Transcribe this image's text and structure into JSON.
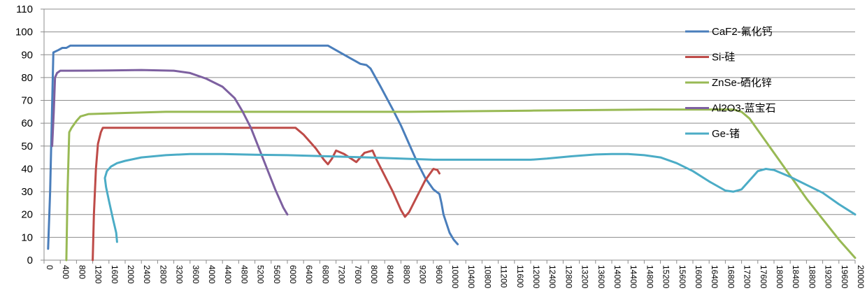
{
  "chart_data": {
    "type": "line",
    "title": "",
    "xlabel": "",
    "ylabel": "",
    "xlim": [
      0,
      20000
    ],
    "ylim": [
      0,
      110
    ],
    "y_ticks": [
      0,
      10,
      20,
      30,
      40,
      50,
      60,
      70,
      80,
      90,
      100,
      110
    ],
    "x_ticks": [
      0,
      400,
      800,
      1200,
      1600,
      2000,
      2400,
      2800,
      3200,
      3600,
      4000,
      4400,
      4800,
      5200,
      5600,
      6000,
      6400,
      6800,
      7200,
      7600,
      8000,
      8400,
      8800,
      9200,
      9600,
      10000,
      10400,
      10800,
      11200,
      11600,
      12000,
      12400,
      12800,
      13200,
      13600,
      14000,
      14400,
      14800,
      15200,
      15600,
      16000,
      16400,
      16800,
      17200,
      17600,
      18000,
      18400,
      18800,
      19200,
      19600,
      20000
    ],
    "grid": "horizontal",
    "legend_position": "right",
    "series": [
      {
        "name": "CaF2-氟化钙",
        "color": "#4a7ebb",
        "points": [
          [
            100,
            5
          ],
          [
            150,
            30
          ],
          [
            230,
            91
          ],
          [
            350,
            92
          ],
          [
            450,
            93
          ],
          [
            550,
            93
          ],
          [
            650,
            94
          ],
          [
            2000,
            94
          ],
          [
            4000,
            94
          ],
          [
            6000,
            94
          ],
          [
            7000,
            94
          ],
          [
            7400,
            90
          ],
          [
            7600,
            88
          ],
          [
            7800,
            86
          ],
          [
            7950,
            85.5
          ],
          [
            8050,
            84
          ],
          [
            8300,
            76
          ],
          [
            8600,
            66
          ],
          [
            8800,
            59
          ],
          [
            9000,
            51
          ],
          [
            9200,
            43
          ],
          [
            9400,
            36
          ],
          [
            9600,
            31
          ],
          [
            9750,
            29
          ],
          [
            9800,
            25
          ],
          [
            9850,
            20
          ],
          [
            10000,
            12
          ],
          [
            10100,
            9
          ],
          [
            10200,
            7
          ]
        ]
      },
      {
        "name": "Si-硅",
        "color": "#be4b48",
        "points": [
          [
            1200,
            0
          ],
          [
            1230,
            20
          ],
          [
            1280,
            40
          ],
          [
            1330,
            51
          ],
          [
            1400,
            56
          ],
          [
            1450,
            58
          ],
          [
            1600,
            58
          ],
          [
            3000,
            58
          ],
          [
            5000,
            58
          ],
          [
            6000,
            58
          ],
          [
            6100,
            58
          ],
          [
            6200,
            58
          ],
          [
            6400,
            55
          ],
          [
            6700,
            49
          ],
          [
            6900,
            44
          ],
          [
            7000,
            42
          ],
          [
            7100,
            44.5
          ],
          [
            7200,
            48
          ],
          [
            7400,
            46.5
          ],
          [
            7700,
            43
          ],
          [
            7900,
            47
          ],
          [
            8100,
            48
          ],
          [
            8200,
            44
          ],
          [
            8400,
            37
          ],
          [
            8600,
            30
          ],
          [
            8800,
            22
          ],
          [
            8900,
            19
          ],
          [
            9000,
            21
          ],
          [
            9200,
            28
          ],
          [
            9400,
            35
          ],
          [
            9600,
            40
          ],
          [
            9700,
            39.5
          ],
          [
            9750,
            38
          ]
        ]
      },
      {
        "name": "ZnSe-硒化锌",
        "color": "#98b954",
        "points": [
          [
            550,
            0
          ],
          [
            580,
            30
          ],
          [
            620,
            56
          ],
          [
            680,
            58
          ],
          [
            800,
            61
          ],
          [
            900,
            63
          ],
          [
            1100,
            64
          ],
          [
            2000,
            64.5
          ],
          [
            3000,
            65
          ],
          [
            6000,
            65
          ],
          [
            9000,
            65
          ],
          [
            12000,
            65.5
          ],
          [
            15000,
            66
          ],
          [
            16800,
            66
          ],
          [
            17000,
            66
          ],
          [
            17200,
            65
          ],
          [
            17400,
            62
          ],
          [
            17600,
            57
          ],
          [
            18000,
            47
          ],
          [
            18400,
            37
          ],
          [
            18800,
            27
          ],
          [
            19200,
            18
          ],
          [
            19600,
            9
          ],
          [
            20000,
            1
          ]
        ]
      },
      {
        "name": "Al2O3-蓝宝石",
        "color": "#7d60a0",
        "points": [
          [
            200,
            50
          ],
          [
            240,
            65
          ],
          [
            270,
            80
          ],
          [
            320,
            82
          ],
          [
            400,
            83
          ],
          [
            600,
            83
          ],
          [
            1600,
            83.1
          ],
          [
            2400,
            83.3
          ],
          [
            3200,
            83
          ],
          [
            3600,
            82
          ],
          [
            4000,
            79.5
          ],
          [
            4400,
            76
          ],
          [
            4700,
            71
          ],
          [
            4900,
            65
          ],
          [
            5100,
            58
          ],
          [
            5300,
            49
          ],
          [
            5500,
            40
          ],
          [
            5700,
            31
          ],
          [
            5900,
            23
          ],
          [
            6000,
            20
          ]
        ]
      },
      {
        "name": "Ge-锗",
        "color": "#4bacc6",
        "points": [
          [
            1800,
            8
          ],
          [
            1780,
            12
          ],
          [
            1700,
            18
          ],
          [
            1600,
            26
          ],
          [
            1530,
            32
          ],
          [
            1500,
            36
          ],
          [
            1550,
            39
          ],
          [
            1650,
            41
          ],
          [
            1800,
            42.5
          ],
          [
            2000,
            43.5
          ],
          [
            2400,
            45
          ],
          [
            3000,
            46
          ],
          [
            3600,
            46.5
          ],
          [
            4400,
            46.5
          ],
          [
            5200,
            46.2
          ],
          [
            6000,
            46
          ],
          [
            7000,
            45.5
          ],
          [
            8000,
            45
          ],
          [
            8800,
            44.5
          ],
          [
            9600,
            44
          ],
          [
            10400,
            44
          ],
          [
            11000,
            44
          ],
          [
            11600,
            44
          ],
          [
            12000,
            44
          ],
          [
            12400,
            44.5
          ],
          [
            13000,
            45.5
          ],
          [
            13600,
            46.3
          ],
          [
            14000,
            46.5
          ],
          [
            14400,
            46.5
          ],
          [
            14800,
            46
          ],
          [
            15200,
            45
          ],
          [
            15600,
            42.5
          ],
          [
            16000,
            39
          ],
          [
            16400,
            34.5
          ],
          [
            16800,
            30.5
          ],
          [
            17000,
            30
          ],
          [
            17200,
            31
          ],
          [
            17400,
            35
          ],
          [
            17600,
            39
          ],
          [
            17800,
            40
          ],
          [
            18000,
            39.5
          ],
          [
            18400,
            36.5
          ],
          [
            18800,
            33
          ],
          [
            19200,
            29.5
          ],
          [
            19600,
            24.5
          ],
          [
            20000,
            20
          ]
        ]
      }
    ]
  }
}
